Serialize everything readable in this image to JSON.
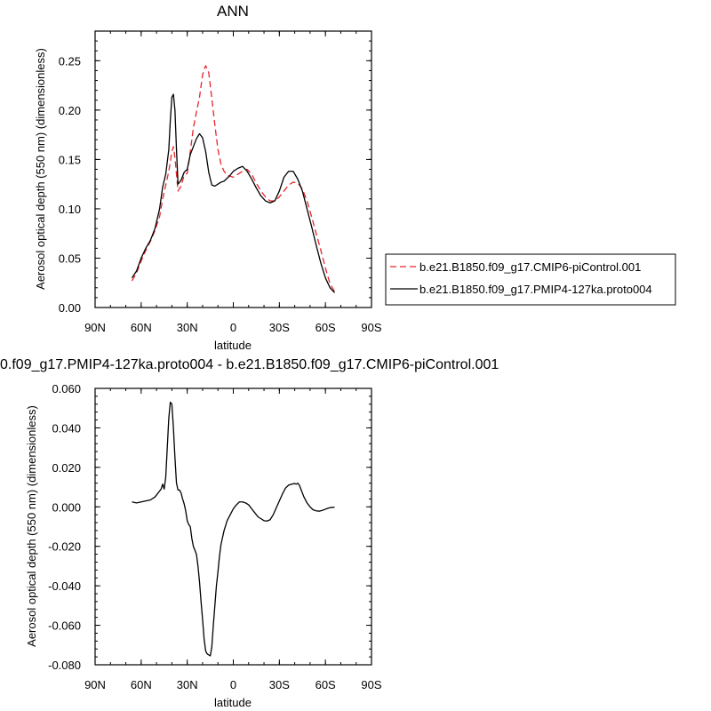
{
  "chart_data": [
    {
      "type": "line",
      "title": "ANN",
      "xlabel": "latitude",
      "ylabel": "Aerosol optical depth (550 nm) (dimensionless)",
      "xlim": [
        90,
        -90
      ],
      "ylim": [
        0.0,
        0.28
      ],
      "x_tick_values": [
        90,
        60,
        30,
        0,
        -30,
        -60,
        -90
      ],
      "x_tick_labels": [
        "90N",
        "60N",
        "30N",
        "0",
        "30S",
        "60S",
        "90S"
      ],
      "y_tick_values": [
        0.0,
        0.05,
        0.1,
        0.15,
        0.2,
        0.25
      ],
      "y_tick_labels": [
        "0.00",
        "0.05",
        "0.10",
        "0.15",
        "0.20",
        "0.25"
      ],
      "legend": "right-outside",
      "series": [
        {
          "name": "b.e21.B1850.f09_g17.CMIP6-piControl.001",
          "color": "#e8242b",
          "dash": "dashed",
          "x": [
            66,
            63,
            60,
            57,
            54,
            51,
            48,
            46,
            44,
            42,
            40,
            39,
            38,
            36,
            34,
            32,
            30,
            28,
            26,
            24,
            22,
            20,
            18,
            16,
            14,
            12,
            10,
            8,
            6,
            4,
            2,
            0,
            -3,
            -6,
            -9,
            -12,
            -15,
            -18,
            -21,
            -24,
            -27,
            -30,
            -33,
            -36,
            -39,
            -42,
            -45,
            -48,
            -51,
            -54,
            -57,
            -60,
            -63,
            -66
          ],
          "y": [
            0.027,
            0.035,
            0.047,
            0.058,
            0.067,
            0.078,
            0.092,
            0.11,
            0.124,
            0.138,
            0.158,
            0.163,
            0.152,
            0.118,
            0.123,
            0.134,
            0.136,
            0.158,
            0.182,
            0.198,
            0.213,
            0.236,
            0.245,
            0.238,
            0.212,
            0.185,
            0.16,
            0.145,
            0.138,
            0.134,
            0.133,
            0.132,
            0.135,
            0.138,
            0.14,
            0.135,
            0.126,
            0.118,
            0.112,
            0.108,
            0.108,
            0.112,
            0.118,
            0.124,
            0.127,
            0.126,
            0.12,
            0.108,
            0.092,
            0.075,
            0.058,
            0.04,
            0.024,
            0.016
          ]
        },
        {
          "name": "b.e21.B1850.f09_g17.PMIP4-127ka.proto004",
          "color": "#000000",
          "dash": "solid",
          "x": [
            66,
            63,
            60,
            57,
            54,
            51,
            48,
            46,
            44,
            42,
            41,
            40,
            39,
            38,
            37,
            36,
            34,
            32,
            30,
            28,
            26,
            24,
            22,
            20,
            18,
            16,
            14,
            12,
            10,
            8,
            6,
            4,
            2,
            0,
            -3,
            -6,
            -9,
            -12,
            -15,
            -18,
            -21,
            -24,
            -27,
            -30,
            -33,
            -36,
            -39,
            -42,
            -45,
            -48,
            -51,
            -54,
            -57,
            -60,
            -63,
            -66
          ],
          "y": [
            0.03,
            0.037,
            0.05,
            0.06,
            0.068,
            0.08,
            0.1,
            0.122,
            0.135,
            0.16,
            0.19,
            0.213,
            0.216,
            0.2,
            0.16,
            0.125,
            0.129,
            0.137,
            0.14,
            0.155,
            0.163,
            0.171,
            0.176,
            0.172,
            0.158,
            0.137,
            0.124,
            0.123,
            0.125,
            0.127,
            0.128,
            0.131,
            0.134,
            0.138,
            0.141,
            0.143,
            0.138,
            0.13,
            0.121,
            0.113,
            0.108,
            0.106,
            0.108,
            0.118,
            0.132,
            0.138,
            0.138,
            0.13,
            0.118,
            0.1,
            0.082,
            0.063,
            0.045,
            0.03,
            0.02,
            0.015
          ]
        }
      ]
    },
    {
      "type": "line",
      "title": "0.f09_g17.PMIP4-127ka.proto004 - b.e21.B1850.f09_g17.CMIP6-piControl.001",
      "xlabel": "latitude",
      "ylabel": "Aerosol optical depth (550 nm) (dimensionless)",
      "xlim": [
        90,
        -90
      ],
      "ylim": [
        -0.08,
        0.06
      ],
      "x_tick_values": [
        90,
        60,
        30,
        0,
        -30,
        -60,
        -90
      ],
      "x_tick_labels": [
        "90N",
        "60N",
        "30N",
        "0",
        "30S",
        "60S",
        "90S"
      ],
      "y_tick_values": [
        0.06,
        0.04,
        0.02,
        0.0,
        -0.02,
        -0.04,
        -0.06,
        -0.08
      ],
      "y_tick_labels": [
        "0.060",
        "0.040",
        "0.020",
        "0.000",
        "-0.020",
        "-0.040",
        "-0.060",
        "-0.080"
      ],
      "series": [
        {
          "color": "#000000",
          "dash": "solid",
          "x": [
            66,
            63,
            60,
            57,
            54,
            51,
            48,
            47,
            46,
            45,
            44,
            43,
            42,
            41,
            40,
            39,
            38,
            37,
            36,
            35,
            34,
            33,
            32,
            31,
            30,
            29,
            28,
            27,
            26,
            25,
            24,
            23,
            22,
            21,
            20,
            19,
            18,
            17,
            16,
            15,
            14,
            13,
            12,
            11,
            10,
            9,
            8,
            6,
            4,
            2,
            0,
            -2,
            -4,
            -6,
            -8,
            -10,
            -12,
            -14,
            -16,
            -18,
            -20,
            -22,
            -24,
            -26,
            -28,
            -30,
            -32,
            -34,
            -36,
            -38,
            -40,
            -41,
            -42,
            -43,
            -44,
            -46,
            -48,
            -50,
            -52,
            -54,
            -56,
            -58,
            -60,
            -62,
            -64,
            -66
          ],
          "y": [
            0.0025,
            0.002,
            0.0025,
            0.003,
            0.0035,
            0.005,
            0.008,
            0.009,
            0.0115,
            0.009,
            0.015,
            0.03,
            0.045,
            0.053,
            0.052,
            0.04,
            0.025,
            0.012,
            0.0085,
            0.0085,
            0.007,
            0.004,
            0.0015,
            -0.002,
            -0.007,
            -0.009,
            -0.01,
            -0.016,
            -0.02,
            -0.022,
            -0.024,
            -0.03,
            -0.038,
            -0.048,
            -0.057,
            -0.067,
            -0.073,
            -0.0745,
            -0.075,
            -0.0755,
            -0.071,
            -0.06,
            -0.05,
            -0.04,
            -0.033,
            -0.025,
            -0.019,
            -0.012,
            -0.007,
            -0.004,
            -0.001,
            0.001,
            0.0025,
            0.0025,
            0.002,
            0.001,
            -0.001,
            -0.003,
            -0.005,
            -0.006,
            -0.007,
            -0.0072,
            -0.0065,
            -0.004,
            -0.0005,
            0.003,
            0.0065,
            0.0095,
            0.011,
            0.0115,
            0.0118,
            0.0115,
            0.012,
            0.011,
            0.009,
            0.005,
            0.002,
            0.0,
            -0.0015,
            -0.002,
            -0.0022,
            -0.0018,
            -0.0012,
            -0.0006,
            -0.0003,
            -0.0002
          ]
        }
      ]
    }
  ]
}
